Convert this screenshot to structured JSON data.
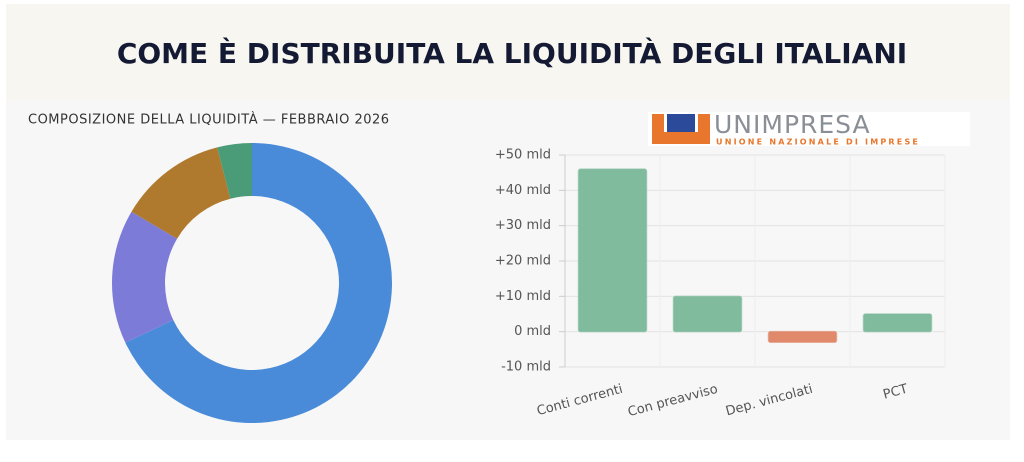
{
  "header": {
    "title": "COME È DISTRIBUITA LA LIQUIDITÀ DEGLI ITALIANI"
  },
  "logo": {
    "name": "UNIMPRESA",
    "tagline": "UNIONE NAZIONALE DI IMPRESE"
  },
  "chart_data": [
    {
      "type": "donut",
      "title": "COMPOSIZIONE DELLA LIQUIDITÀ — FEBBRAIO 2026",
      "values": [
        68,
        15.5,
        12.5,
        4
      ],
      "colors": [
        "#4a8bd9",
        "#7d7bd8",
        "#b07a2e",
        "#4a9c78"
      ]
    },
    {
      "type": "bar",
      "categories": [
        "Conti correnti",
        "Con preavviso",
        "Dep. vincolati",
        "PCT"
      ],
      "values": [
        46,
        10,
        -3,
        5
      ],
      "colors": [
        "#7fbb9c",
        "#7fbb9c",
        "#e0896b",
        "#7fbb9c"
      ],
      "ylim": [
        -10,
        50
      ],
      "yticks": [
        {
          "value": -10,
          "label": "-10 mld"
        },
        {
          "value": 0,
          "label": "0 mld"
        },
        {
          "value": 10,
          "label": "+10 mld"
        },
        {
          "value": 20,
          "label": "+20 mld"
        },
        {
          "value": 30,
          "label": "+30 mld"
        },
        {
          "value": 40,
          "label": "+40 mld"
        },
        {
          "value": 50,
          "label": "+50 mld"
        }
      ],
      "grid": true
    }
  ]
}
